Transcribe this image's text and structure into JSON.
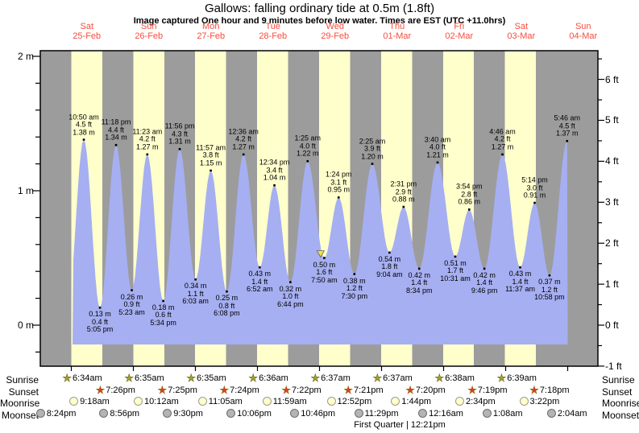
{
  "title": "Gallows: falling  ordinary tide at 0.5m (1.8ft)",
  "subtitle": "Image captured One hour and 9 minutes before low water. Times are EST (UTC +11.0hrs)",
  "colors": {
    "day_band": "#ffffcc",
    "night_band": "#9c9c9c",
    "tide_fill": "#a6aff1",
    "date_red": "#f94b3b",
    "marker_yellow": "#f5e33a"
  },
  "chart_data": {
    "type": "area",
    "title": "Gallows: falling  ordinary tide at 0.5m (1.8ft)",
    "ylabel_left": "metres",
    "ylabel_right": "feet",
    "ylim_m": [
      -0.31,
      2.05
    ],
    "grid": false,
    "y_ticks_m": [
      {
        "v": 2,
        "label": "2 m"
      },
      {
        "v": 1,
        "label": "1 m"
      },
      {
        "v": 0,
        "label": "0 m"
      }
    ],
    "y_ticks_ft": [
      {
        "v": 6,
        "label": "6 ft"
      },
      {
        "v": 5,
        "label": "5 ft"
      },
      {
        "v": 4,
        "label": "4 ft"
      },
      {
        "v": 3,
        "label": "3 ft"
      },
      {
        "v": 2,
        "label": "2 ft"
      },
      {
        "v": 1,
        "label": "1 ft"
      },
      {
        "v": 0,
        "label": "0 ft"
      },
      {
        "v": -1,
        "label": "-1 ft"
      }
    ],
    "days": [
      {
        "name": "Sat",
        "date": "25-Feb"
      },
      {
        "name": "Sun",
        "date": "26-Feb"
      },
      {
        "name": "Mon",
        "date": "27-Feb"
      },
      {
        "name": "Tue",
        "date": "28-Feb"
      },
      {
        "name": "Wed",
        "date": "29-Feb"
      },
      {
        "name": "Thu",
        "date": "01-Mar"
      },
      {
        "name": "Fri",
        "date": "02-Mar"
      },
      {
        "name": "Sat",
        "date": "03-Mar"
      },
      {
        "name": "Sun",
        "date": "04-Mar"
      }
    ],
    "extremes": [
      {
        "day": 0,
        "type": "high",
        "time": "10:50 am",
        "ft": "4.5",
        "m": "1.38"
      },
      {
        "day": 0,
        "type": "low",
        "time": "5:05 pm",
        "ft": "0.4",
        "m": "0.13"
      },
      {
        "day": 0,
        "type": "high",
        "time": "11:18 pm",
        "ft": "4.4",
        "m": "1.34"
      },
      {
        "day": 1,
        "type": "low",
        "time": "5:23 am",
        "ft": "0.9",
        "m": "0.26"
      },
      {
        "day": 1,
        "type": "high",
        "time": "11:23 am",
        "ft": "4.2",
        "m": "1.27"
      },
      {
        "day": 1,
        "type": "low",
        "time": "5:34 pm",
        "ft": "0.6",
        "m": "0.18"
      },
      {
        "day": 1,
        "type": "high",
        "time": "11:56 pm",
        "ft": "4.3",
        "m": "1.31"
      },
      {
        "day": 2,
        "type": "low",
        "time": "6:03 am",
        "ft": "1.1",
        "m": "0.34"
      },
      {
        "day": 2,
        "type": "high",
        "time": "11:57 am",
        "ft": "3.8",
        "m": "1.15"
      },
      {
        "day": 2,
        "type": "low",
        "time": "6:08 pm",
        "ft": "0.8",
        "m": "0.25"
      },
      {
        "day": 3,
        "type": "high",
        "time": "12:36 am",
        "ft": "4.2",
        "m": "1.27"
      },
      {
        "day": 3,
        "type": "low",
        "time": "6:52 am",
        "ft": "1.4",
        "m": "0.43"
      },
      {
        "day": 3,
        "type": "high",
        "time": "12:34 pm",
        "ft": "3.4",
        "m": "1.04"
      },
      {
        "day": 3,
        "type": "low",
        "time": "6:44 pm",
        "ft": "1.0",
        "m": "0.32"
      },
      {
        "day": 4,
        "type": "high",
        "time": "1:25 am",
        "ft": "4.0",
        "m": "1.22"
      },
      {
        "day": 4,
        "type": "low",
        "time": "7:50 am",
        "ft": "1.6",
        "m": "0.50",
        "current": true
      },
      {
        "day": 4,
        "type": "high",
        "time": "1:24 pm",
        "ft": "3.1",
        "m": "0.95"
      },
      {
        "day": 4,
        "type": "low",
        "time": "7:30 pm",
        "ft": "1.2",
        "m": "0.38"
      },
      {
        "day": 5,
        "type": "high",
        "time": "2:25 am",
        "ft": "3.9",
        "m": "1.20"
      },
      {
        "day": 5,
        "type": "low",
        "time": "9:04 am",
        "ft": "1.8",
        "m": "0.54"
      },
      {
        "day": 5,
        "type": "high",
        "time": "2:31 pm",
        "ft": "2.9",
        "m": "0.88"
      },
      {
        "day": 5,
        "type": "low",
        "time": "8:34 pm",
        "ft": "1.4",
        "m": "0.42"
      },
      {
        "day": 6,
        "type": "high",
        "time": "3:40 am",
        "ft": "4.0",
        "m": "1.21"
      },
      {
        "day": 6,
        "type": "low",
        "time": "10:31 am",
        "ft": "1.7",
        "m": "0.51"
      },
      {
        "day": 6,
        "type": "high",
        "time": "3:54 pm",
        "ft": "2.8",
        "m": "0.86"
      },
      {
        "day": 6,
        "type": "low",
        "time": "9:46 pm",
        "ft": "1.4",
        "m": "0.42"
      },
      {
        "day": 7,
        "type": "high",
        "time": "4:46 am",
        "ft": "4.2",
        "m": "1.27"
      },
      {
        "day": 7,
        "type": "low",
        "time": "11:37 am",
        "ft": "1.4",
        "m": "0.43"
      },
      {
        "day": 7,
        "type": "high",
        "time": "5:14 pm",
        "ft": "3.0",
        "m": "0.91"
      },
      {
        "day": 7,
        "type": "low",
        "time": "10:58 pm",
        "ft": "1.2",
        "m": "0.37"
      },
      {
        "day": 8,
        "type": "high",
        "time": "5:46 am",
        "ft": "4.5",
        "m": "1.37"
      }
    ]
  },
  "astro": {
    "rows": [
      {
        "key": "sunrise",
        "label": "Sunrise",
        "events": [
          {
            "day": 0,
            "time": "6:34am"
          },
          {
            "day": 1,
            "time": "6:35am"
          },
          {
            "day": 2,
            "time": "6:35am"
          },
          {
            "day": 3,
            "time": "6:36am"
          },
          {
            "day": 4,
            "time": "6:37am"
          },
          {
            "day": 5,
            "time": "6:37am"
          },
          {
            "day": 6,
            "time": "6:38am"
          },
          {
            "day": 7,
            "time": "6:39am"
          }
        ]
      },
      {
        "key": "sunset",
        "label": "Sunset",
        "events": [
          {
            "day": 0,
            "time": "7:26pm"
          },
          {
            "day": 1,
            "time": "7:25pm"
          },
          {
            "day": 2,
            "time": "7:24pm"
          },
          {
            "day": 3,
            "time": "7:22pm"
          },
          {
            "day": 4,
            "time": "7:21pm"
          },
          {
            "day": 5,
            "time": "7:20pm"
          },
          {
            "day": 6,
            "time": "7:19pm"
          },
          {
            "day": 7,
            "time": "7:18pm"
          }
        ]
      },
      {
        "key": "moonrise",
        "label": "Moonrise",
        "events": [
          {
            "day": 0,
            "time": "9:18am"
          },
          {
            "day": 1,
            "time": "10:12am"
          },
          {
            "day": 2,
            "time": "11:05am"
          },
          {
            "day": 3,
            "time": "11:59am"
          },
          {
            "day": 4,
            "time": "12:52pm"
          },
          {
            "day": 5,
            "time": "1:44pm"
          },
          {
            "day": 6,
            "time": "2:34pm"
          },
          {
            "day": 7,
            "time": "3:22pm"
          }
        ]
      },
      {
        "key": "moonset",
        "label": "Moonset",
        "events": [
          {
            "day": -1,
            "time": "8:24pm"
          },
          {
            "day": 0,
            "time": "8:56pm"
          },
          {
            "day": 1,
            "time": "9:30pm"
          },
          {
            "day": 2,
            "time": "10:06pm"
          },
          {
            "day": 3,
            "time": "10:46pm"
          },
          {
            "day": 4,
            "time": "11:29pm"
          },
          {
            "day": 6,
            "time": "12:16am"
          },
          {
            "day": 7,
            "time": "1:08am"
          },
          {
            "day": 8,
            "time": "2:04am"
          }
        ]
      }
    ],
    "moon_phase": "First Quarter | 12:21pm"
  }
}
